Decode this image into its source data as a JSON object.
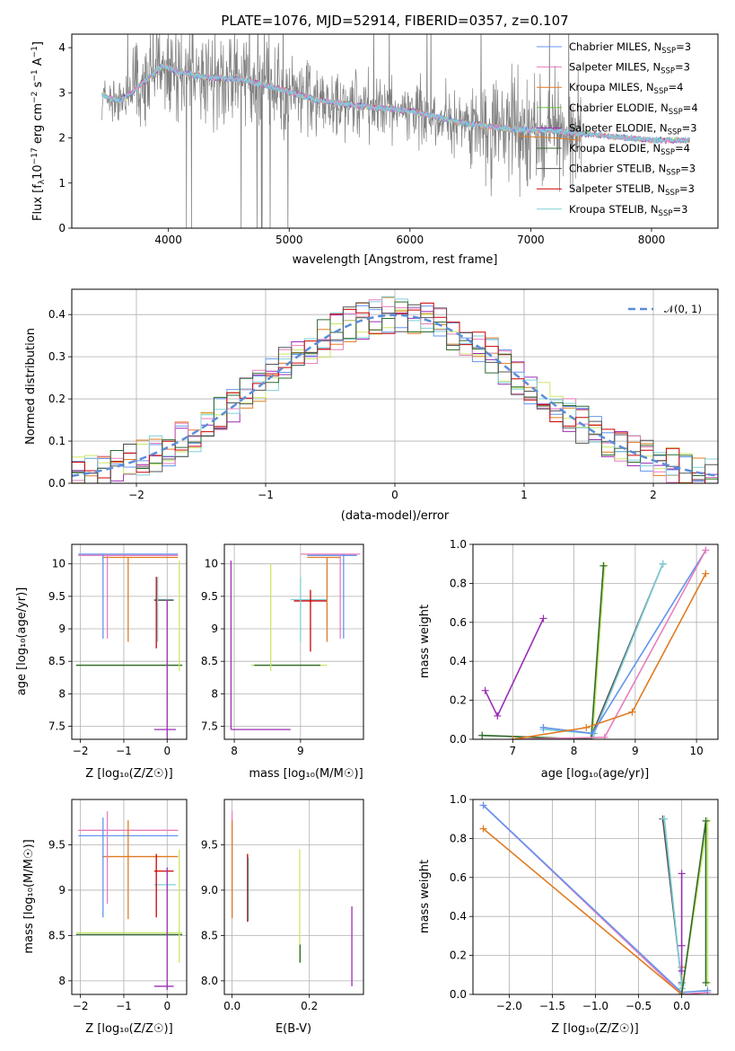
{
  "title": "PLATE=1076, MJD=52914, FIBERID=0357, z=0.107",
  "colors": {
    "grey": "#808080",
    "cornflowerblue": "#6495ed",
    "hotpink": "#e87dbd",
    "orange": "#e07b22",
    "green": "#6abf45",
    "purple": "#9b2fb5",
    "darkgreen": "#2f6a30",
    "red": "#cc0000",
    "cyan": "#7fd0d8",
    "lime": "#c8e86a",
    "black": "#222222",
    "dashed": "#5b8dd9"
  },
  "legend": [
    {
      "text": "Chabrier MILES, N",
      "sub": "SSP",
      "tail": "=3",
      "color": "#6495ed"
    },
    {
      "text": "Salpeter MILES, N",
      "sub": "SSP",
      "tail": "=3",
      "color": "#e87dbd"
    },
    {
      "text": "Kroupa MILES, N",
      "sub": "SSP",
      "tail": "=4",
      "color": "#e07b22"
    },
    {
      "text": "Chabrier ELODIE, N",
      "sub": "SSP",
      "tail": "=4",
      "color": "#6abf45"
    },
    {
      "text": "Salpeter ELODIE, N",
      "sub": "SSP",
      "tail": "=3",
      "color": "#9b2fb5"
    },
    {
      "text": "Kroupa ELODIE, N",
      "sub": "SSP",
      "tail": "=4",
      "color": "#2f6a30"
    },
    {
      "text": "Chabrier STELIB, N",
      "sub": "SSP",
      "tail": "=3",
      "color": "#555555"
    },
    {
      "text": "Salpeter STELIB, N",
      "sub": "SSP",
      "tail": "=3",
      "color": "#cc0000"
    },
    {
      "text": "Kroupa STELIB, N",
      "sub": "SSP",
      "tail": "=3",
      "color": "#7fd0d8"
    }
  ],
  "chart_data": [
    {
      "type": "line",
      "title": "PLATE=1076, MJD=52914, FIBERID=0357, z=0.107",
      "xlabel": "wavelength [Angstrom, rest frame]",
      "ylabel": "Flux [f_λ 10^-17 erg cm^-2 s^-1 A^-1]",
      "xlim": [
        3200,
        8550
      ],
      "ylim": [
        0,
        4.3
      ],
      "xticks": [
        4000,
        5000,
        6000,
        7000,
        8000
      ],
      "yticks": [
        0,
        1,
        2,
        3,
        4
      ],
      "series_profile": {
        "x": [
          3450,
          3600,
          3800,
          3950,
          4100,
          4300,
          4600,
          4900,
          5200,
          5600,
          6000,
          6400,
          6800,
          7200,
          7600,
          8000,
          8300
        ],
        "model": [
          2.95,
          2.8,
          3.25,
          3.6,
          3.45,
          3.35,
          3.3,
          3.1,
          2.85,
          2.7,
          2.6,
          2.35,
          2.2,
          2.15,
          2.05,
          1.95,
          1.95
        ]
      }
    },
    {
      "type": "bar",
      "xlabel": "(data-model)/error",
      "ylabel": "Normed distribution",
      "xlim": [
        -2.5,
        2.5
      ],
      "ylim": [
        0,
        0.46
      ],
      "xticks": [
        -2,
        -1,
        0,
        1,
        2
      ],
      "yticks": [
        0.0,
        0.1,
        0.2,
        0.3,
        0.4
      ],
      "legend": "N(0,1)",
      "bin_width": 0.1
    },
    {
      "type": "scatter",
      "xlabel": "Z [log10(Z/Z☉)]",
      "ylabel": "age [log10(age/yr)]",
      "xlim": [
        -2.2,
        0.45
      ],
      "ylim": [
        7.3,
        10.3
      ],
      "xticks": [
        -2,
        -1,
        0
      ],
      "yticks": [
        7.5,
        8.0,
        8.5,
        9.0,
        9.5,
        10.0
      ]
    },
    {
      "type": "scatter",
      "xlabel": "mass [log10(M/M☉)]",
      "ylabel": "",
      "xlim": [
        7.85,
        9.95
      ],
      "ylim": [
        7.3,
        10.3
      ],
      "xticks": [
        8,
        9
      ],
      "yticks": [
        7.5,
        8.0,
        8.5,
        9.0,
        9.5,
        10.0
      ]
    },
    {
      "type": "line",
      "xlabel": "age [log10(age/yr)]",
      "ylabel": "mass weight",
      "xlim": [
        6.35,
        10.35
      ],
      "ylim": [
        0,
        1.0
      ],
      "xticks": [
        7,
        8,
        9,
        10
      ],
      "yticks": [
        0.0,
        0.2,
        0.4,
        0.6,
        0.8,
        1.0
      ],
      "series": [
        {
          "color": "#9b2fb5",
          "x": [
            6.55,
            6.75,
            7.5
          ],
          "y": [
            0.25,
            0.12,
            0.62
          ]
        },
        {
          "color": "#c8e86a",
          "x": [
            6.5,
            8.3,
            8.5
          ],
          "y": [
            0.02,
            0.0,
            0.89
          ]
        },
        {
          "color": "#2f6a30",
          "x": [
            6.5,
            8.28,
            8.48
          ],
          "y": [
            0.02,
            0.0,
            0.89
          ]
        },
        {
          "color": "#555555",
          "x": [
            7.5,
            8.3,
            9.45
          ],
          "y": [
            0.06,
            0.03,
            0.9
          ]
        },
        {
          "color": "#7fd0d8",
          "x": [
            7.5,
            8.33,
            9.45
          ],
          "y": [
            0.05,
            0.03,
            0.9
          ]
        },
        {
          "color": "#6495ed",
          "x": [
            7.5,
            8.3,
            10.15
          ],
          "y": [
            0.06,
            0.03,
            0.97
          ]
        },
        {
          "color": "#e87dbd",
          "x": [
            7.0,
            8.5,
            10.15
          ],
          "y": [
            0.0,
            0.01,
            0.97
          ]
        },
        {
          "color": "#e07b22",
          "x": [
            7.0,
            8.2,
            8.95,
            10.15
          ],
          "y": [
            0.0,
            0.06,
            0.14,
            0.85
          ]
        }
      ]
    },
    {
      "type": "scatter",
      "xlabel": "Z [log10(Z/Z☉)]",
      "ylabel": "mass [log10(M/M☉)]",
      "xlim": [
        -2.2,
        0.45
      ],
      "ylim": [
        7.85,
        10.0
      ],
      "xticks": [
        -2,
        -1,
        0
      ],
      "yticks": [
        8.0,
        8.5,
        9.0,
        9.5
      ]
    },
    {
      "type": "scatter",
      "xlabel": "E(B-V)",
      "ylabel": "",
      "xlim": [
        -0.02,
        0.34
      ],
      "ylim": [
        7.85,
        10.0
      ],
      "xticks": [
        0.0,
        0.2
      ],
      "yticks": [
        8.0,
        8.5,
        9.0,
        9.5
      ]
    },
    {
      "type": "line",
      "xlabel": "Z [log10(Z/Z☉)]",
      "ylabel": "mass weight",
      "xlim": [
        -2.42,
        0.42
      ],
      "ylim": [
        0,
        1.0
      ],
      "xticks": [
        -2.0,
        -1.5,
        -1.0,
        -0.5,
        0.0
      ],
      "yticks": [
        0.0,
        0.2,
        0.4,
        0.6,
        0.8,
        1.0
      ],
      "series": [
        {
          "color": "#e87dbd",
          "x": [
            -2.3,
            0.0,
            0.3
          ],
          "y": [
            0.97,
            0.0,
            0.01
          ]
        },
        {
          "color": "#6495ed",
          "x": [
            -2.3,
            0.0,
            0.3
          ],
          "y": [
            0.97,
            0.01,
            0.02
          ]
        },
        {
          "color": "#e07b22",
          "x": [
            -2.3,
            0.0,
            0.0
          ],
          "y": [
            0.85,
            0.0,
            0.14
          ]
        },
        {
          "color": "#555555",
          "x": [
            -0.22,
            0.0,
            0.0
          ],
          "y": [
            0.9,
            0.06,
            0.03
          ]
        },
        {
          "color": "#7fd0d8",
          "x": [
            -0.2,
            0.0,
            0.0
          ],
          "y": [
            0.9,
            0.05,
            0.03
          ]
        },
        {
          "color": "#9b2fb5",
          "x": [
            0.0,
            0.0,
            0.0
          ],
          "y": [
            0.62,
            0.25,
            0.12
          ]
        },
        {
          "color": "#c8e86a",
          "x": [
            0.0,
            0.3,
            0.3
          ],
          "y": [
            0.0,
            0.89,
            0.06
          ]
        },
        {
          "color": "#2f6a30",
          "x": [
            0.0,
            0.28,
            0.28
          ],
          "y": [
            0.0,
            0.89,
            0.06
          ]
        }
      ]
    }
  ]
}
